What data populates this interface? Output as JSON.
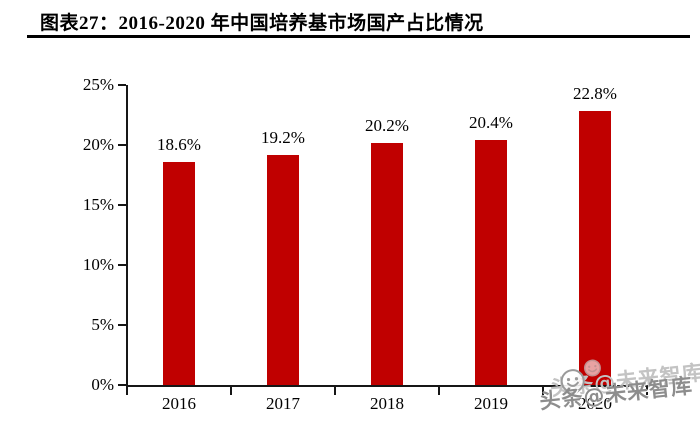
{
  "header": {
    "title": "图表27：2016-2020 年中国培养基市场国产占比情况"
  },
  "chart_data": {
    "type": "bar",
    "title": "图表27：2016-2020 年中国培养基市场国产占比情况",
    "categories": [
      "2016",
      "2017",
      "2018",
      "2019",
      "2020"
    ],
    "values": [
      18.6,
      19.2,
      20.2,
      20.4,
      22.8
    ],
    "value_labels": [
      "18.6%",
      "19.2%",
      "20.2%",
      "20.4%",
      "22.8%"
    ],
    "xlabel": "",
    "ylabel": "",
    "ylim": [
      0,
      25
    ],
    "yticks": [
      "0%",
      "5%",
      "10%",
      "15%",
      "20%",
      "25%"
    ],
    "ytick_values": [
      0,
      5,
      10,
      15,
      20,
      25
    ],
    "grid": false,
    "legend_position": "none",
    "bar_color": "#C00000",
    "axis_color": "#161616"
  },
  "watermark": {
    "text": "头条@未来智库",
    "icon": "smiley-icon",
    "main_color": "#8d8d8d",
    "ghost_color": "#c3c3c3"
  }
}
